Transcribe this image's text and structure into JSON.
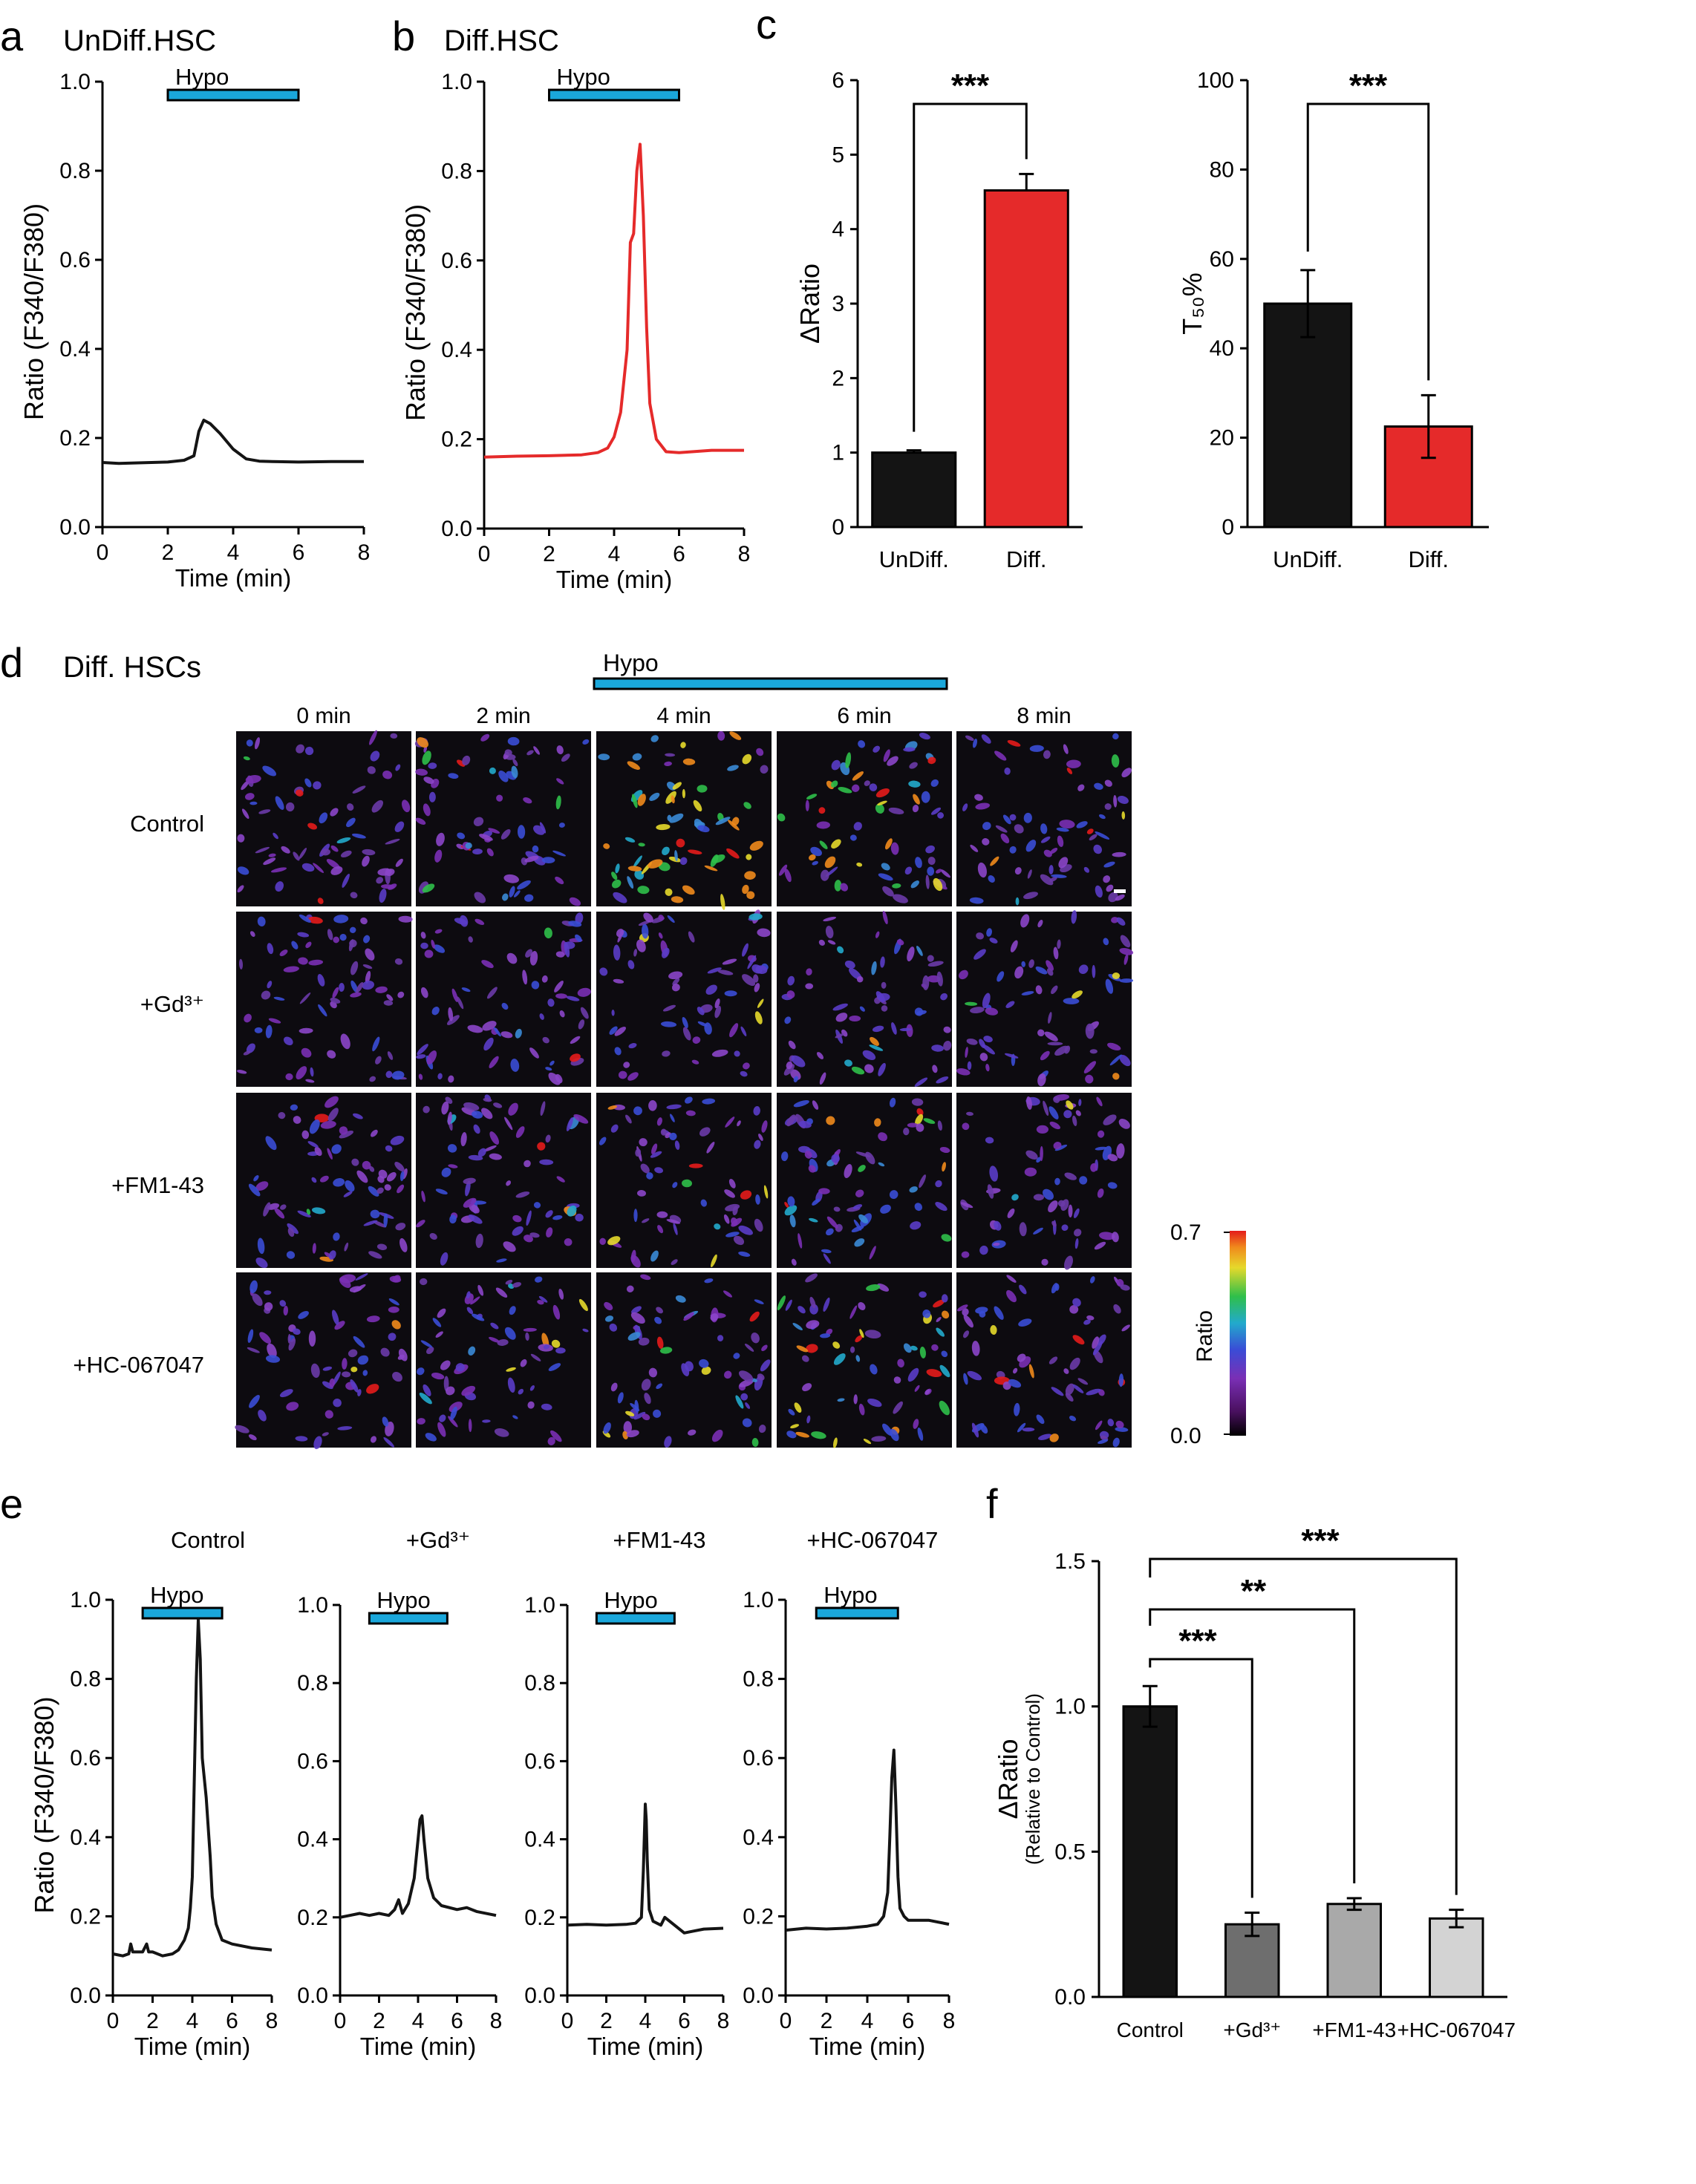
{
  "panels": {
    "a": {
      "letter": "a",
      "title": "UnDiff.HSC"
    },
    "b": {
      "letter": "b",
      "title": "Diff.HSC"
    },
    "c": {
      "letter": "c"
    },
    "d": {
      "letter": "d",
      "title": "Diff. HSCs",
      "hypo": "Hypo",
      "time_labels": [
        "0 min",
        "2 min",
        "4 min",
        "6 min",
        "8 min"
      ],
      "row_labels": [
        "Control",
        "+Gd³⁺",
        "+FM1-43",
        "+HC-067047"
      ]
    },
    "e": {
      "letter": "e"
    },
    "f": {
      "letter": "f"
    }
  },
  "common": {
    "hypo_label": "Hypo",
    "ratio_ylabel": "Ratio (F340/F380)",
    "time_xlabel": "Time (min)"
  },
  "colors": {
    "hypo_bar": "#1aa7db",
    "undiff": "#141414",
    "diff": "#e52a2a",
    "e_bars": [
      "#141414",
      "#6e6e6e",
      "#a9a9a9",
      "#d3d3d3"
    ]
  },
  "colorbar": {
    "max_label": "0.7",
    "min_label": "0.0",
    "title": "Ratio"
  },
  "chart_data": [
    {
      "id": "a",
      "type": "line",
      "title": "UnDiff.HSC",
      "xlabel": "Time (min)",
      "ylabel": "Ratio (F340/F380)",
      "xlim": [
        0,
        8
      ],
      "ylim": [
        0,
        1.0
      ],
      "xticks": [
        "0",
        "2",
        "4",
        "6",
        "8"
      ],
      "yticks": [
        "0.0",
        "0.2",
        "0.4",
        "0.6",
        "0.8",
        "1.0"
      ],
      "annotation": {
        "label": "Hypo",
        "x_range": [
          2,
          6
        ]
      },
      "series": [
        {
          "color": "#141414",
          "x": [
            0,
            0.5,
            1,
            1.5,
            2,
            2.5,
            2.8,
            2.95,
            3.1,
            3.3,
            3.6,
            4.0,
            4.4,
            4.8,
            5.2,
            6,
            7,
            8
          ],
          "y": [
            0.145,
            0.143,
            0.144,
            0.145,
            0.146,
            0.15,
            0.16,
            0.215,
            0.24,
            0.232,
            0.21,
            0.175,
            0.153,
            0.148,
            0.147,
            0.146,
            0.147,
            0.147
          ]
        }
      ]
    },
    {
      "id": "b",
      "type": "line",
      "title": "Diff.HSC",
      "xlabel": "Time (min)",
      "ylabel": "Ratio (F340/F380)",
      "xlim": [
        0,
        8
      ],
      "ylim": [
        0,
        1.0
      ],
      "xticks": [
        "0",
        "2",
        "4",
        "6",
        "8"
      ],
      "yticks": [
        "0.0",
        "0.2",
        "0.4",
        "0.6",
        "0.8",
        "1.0"
      ],
      "annotation": {
        "label": "Hypo",
        "x_range": [
          2,
          6
        ]
      },
      "series": [
        {
          "color": "#e52a2a",
          "x": [
            0,
            1,
            2,
            3,
            3.5,
            3.8,
            4.0,
            4.2,
            4.4,
            4.5,
            4.6,
            4.7,
            4.8,
            4.9,
            5.0,
            5.1,
            5.3,
            5.6,
            6.0,
            7.0,
            8.0
          ],
          "y": [
            0.16,
            0.162,
            0.163,
            0.165,
            0.17,
            0.18,
            0.205,
            0.26,
            0.4,
            0.64,
            0.66,
            0.8,
            0.86,
            0.7,
            0.45,
            0.28,
            0.2,
            0.172,
            0.17,
            0.175,
            0.175
          ]
        }
      ]
    },
    {
      "id": "c1",
      "type": "bar",
      "ylabel": "ΔRatio",
      "categories": [
        "UnDiff.",
        "Diff."
      ],
      "values": [
        1.0,
        4.52
      ],
      "errors": [
        0.03,
        0.22
      ],
      "colors": [
        "#141414",
        "#e52a2a"
      ],
      "ylim": [
        0,
        6
      ],
      "yticks": [
        "0",
        "1",
        "2",
        "3",
        "4",
        "5",
        "6"
      ],
      "significance": [
        {
          "label": "***",
          "between": [
            "UnDiff.",
            "Diff."
          ]
        }
      ]
    },
    {
      "id": "c2",
      "type": "bar",
      "ylabel": "T₅₀%",
      "categories": [
        "UnDiff.",
        "Diff."
      ],
      "values": [
        50,
        22.5
      ],
      "errors": [
        7.5,
        7
      ],
      "colors": [
        "#141414",
        "#e52a2a"
      ],
      "ylim": [
        0,
        100
      ],
      "yticks": [
        "0",
        "20",
        "40",
        "60",
        "80",
        "100"
      ],
      "significance": [
        {
          "label": "***",
          "between": [
            "UnDiff.",
            "Diff."
          ]
        }
      ]
    },
    {
      "id": "e1",
      "type": "line",
      "title": "Control",
      "xlabel": "Time (min)",
      "ylabel": "Ratio (F340/F380)",
      "xlim": [
        0,
        8
      ],
      "ylim": [
        0,
        1.0
      ],
      "xticks": [
        "0",
        "2",
        "4",
        "6",
        "8"
      ],
      "yticks": [
        "0.0",
        "0.2",
        "0.4",
        "0.6",
        "0.8",
        "1.0"
      ],
      "annotation": {
        "label": "Hypo",
        "x_range": [
          1.5,
          5.5
        ]
      },
      "series": [
        {
          "color": "#141414",
          "x": [
            0,
            0.5,
            0.8,
            0.9,
            1.0,
            1.5,
            1.7,
            1.8,
            2.0,
            2.5,
            3.0,
            3.3,
            3.6,
            3.8,
            3.9,
            4.0,
            4.1,
            4.2,
            4.3,
            4.4,
            4.5,
            4.7,
            4.9,
            5.0,
            5.2,
            5.5,
            6.0,
            7.0,
            8.0
          ],
          "y": [
            0.105,
            0.1,
            0.105,
            0.13,
            0.11,
            0.11,
            0.13,
            0.11,
            0.11,
            0.1,
            0.105,
            0.115,
            0.14,
            0.17,
            0.22,
            0.3,
            0.55,
            0.8,
            0.95,
            0.85,
            0.6,
            0.5,
            0.35,
            0.25,
            0.18,
            0.14,
            0.13,
            0.12,
            0.115
          ]
        }
      ]
    },
    {
      "id": "e2",
      "type": "line",
      "title": "+Gd³⁺",
      "xlabel": "Time (min)",
      "xlim": [
        0,
        8
      ],
      "ylim": [
        0,
        1.0
      ],
      "xticks": [
        "0",
        "2",
        "4",
        "6",
        "8"
      ],
      "yticks": [
        "0.0",
        "0.2",
        "0.4",
        "0.6",
        "0.8",
        "1.0"
      ],
      "annotation": {
        "label": "Hypo",
        "x_range": [
          1.5,
          5.5
        ]
      },
      "series": [
        {
          "color": "#141414",
          "x": [
            0,
            0.5,
            1,
            1.5,
            2,
            2.5,
            2.8,
            3.0,
            3.2,
            3.5,
            3.8,
            4.0,
            4.1,
            4.2,
            4.3,
            4.5,
            4.8,
            5.2,
            6.0,
            6.5,
            7.0,
            8.0
          ],
          "y": [
            0.2,
            0.205,
            0.21,
            0.205,
            0.21,
            0.205,
            0.22,
            0.245,
            0.21,
            0.235,
            0.3,
            0.4,
            0.45,
            0.46,
            0.4,
            0.3,
            0.25,
            0.23,
            0.22,
            0.225,
            0.215,
            0.205
          ]
        }
      ]
    },
    {
      "id": "e3",
      "type": "line",
      "title": "+FM1-43",
      "xlabel": "Time (min)",
      "xlim": [
        0,
        8
      ],
      "ylim": [
        0,
        1.0
      ],
      "xticks": [
        "0",
        "2",
        "4",
        "6",
        "8"
      ],
      "yticks": [
        "0.0",
        "0.2",
        "0.4",
        "0.6",
        "0.8",
        "1.0"
      ],
      "annotation": {
        "label": "Hypo",
        "x_range": [
          1.5,
          5.5
        ]
      },
      "series": [
        {
          "color": "#141414",
          "x": [
            0,
            1,
            2,
            3,
            3.5,
            3.8,
            3.9,
            4.0,
            4.05,
            4.1,
            4.2,
            4.4,
            4.8,
            5.0,
            5.5,
            6.0,
            6.5,
            7.0,
            8.0
          ],
          "y": [
            0.18,
            0.182,
            0.18,
            0.182,
            0.185,
            0.2,
            0.32,
            0.49,
            0.45,
            0.35,
            0.22,
            0.19,
            0.18,
            0.2,
            0.18,
            0.16,
            0.165,
            0.17,
            0.172
          ]
        }
      ]
    },
    {
      "id": "e4",
      "type": "line",
      "title": "+HC-067047",
      "xlabel": "Time (min)",
      "xlim": [
        0,
        8
      ],
      "ylim": [
        0,
        1.0
      ],
      "xticks": [
        "0",
        "2",
        "4",
        "6",
        "8"
      ],
      "yticks": [
        "0.0",
        "0.2",
        "0.4",
        "0.6",
        "0.8",
        "1.0"
      ],
      "annotation": {
        "label": "Hypo",
        "x_range": [
          1.5,
          5.5
        ]
      },
      "series": [
        {
          "color": "#141414",
          "x": [
            0,
            1,
            2,
            3,
            4,
            4.5,
            4.8,
            5.0,
            5.1,
            5.2,
            5.3,
            5.4,
            5.5,
            5.6,
            5.8,
            6.0,
            7.0,
            8.0
          ],
          "y": [
            0.165,
            0.17,
            0.168,
            0.17,
            0.175,
            0.18,
            0.2,
            0.26,
            0.4,
            0.55,
            0.62,
            0.48,
            0.3,
            0.22,
            0.2,
            0.19,
            0.19,
            0.18
          ]
        }
      ]
    },
    {
      "id": "f",
      "type": "bar",
      "ylabel": "ΔRatio",
      "ylabel2": "(Relative to Control)",
      "categories": [
        "Control",
        "+Gd³⁺",
        "+FM1-43",
        "+HC-067047"
      ],
      "values": [
        1.0,
        0.25,
        0.32,
        0.27
      ],
      "errors": [
        0.07,
        0.04,
        0.02,
        0.03
      ],
      "colors": [
        "#141414",
        "#6e6e6e",
        "#a9a9a9",
        "#d3d3d3"
      ],
      "ylim": [
        0,
        1.5
      ],
      "yticks": [
        "0.0",
        "0.5",
        "1.0",
        "1.5"
      ],
      "significance": [
        {
          "label": "***",
          "between": [
            "Control",
            "+Gd³⁺"
          ]
        },
        {
          "label": "**",
          "between": [
            "Control",
            "+FM1-43"
          ]
        },
        {
          "label": "***",
          "between": [
            "Control",
            "+HC-067047"
          ]
        }
      ]
    }
  ]
}
